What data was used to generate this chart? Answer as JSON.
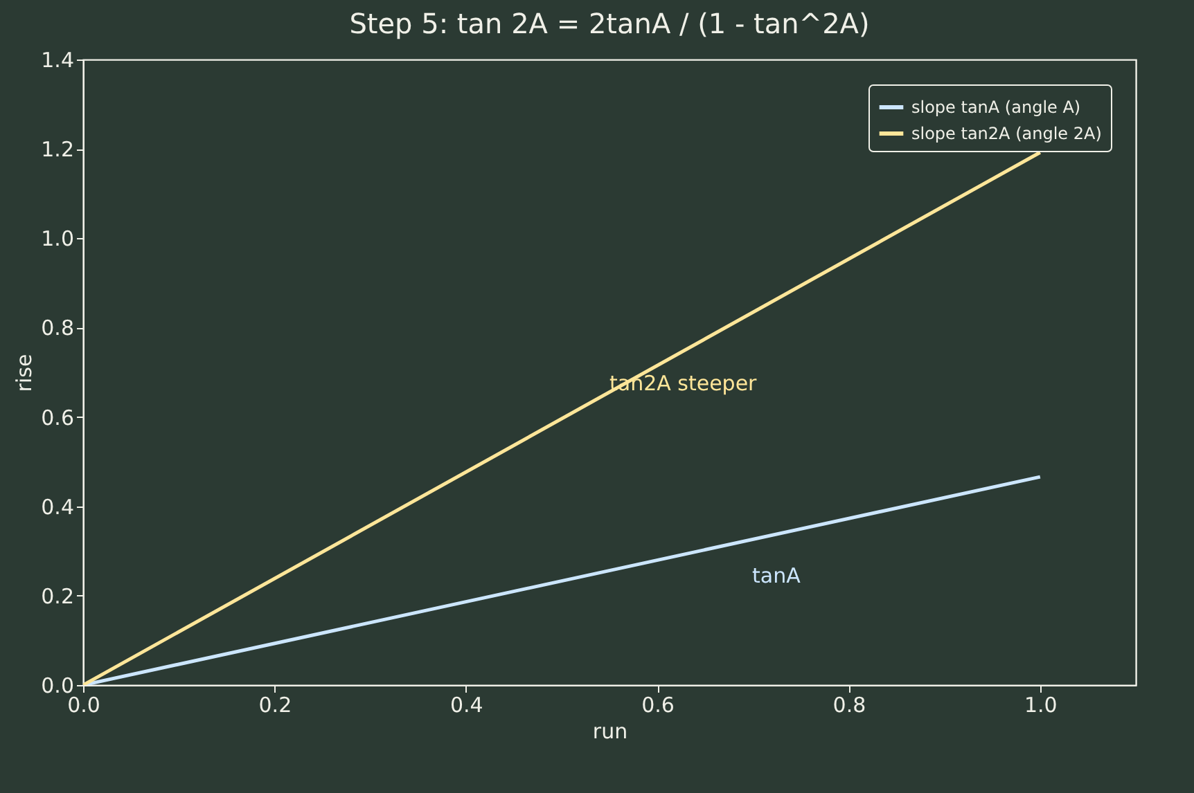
{
  "chart_data": {
    "type": "line",
    "title": "Step 5: tan 2A = 2tanA / (1 - tan^2A)",
    "xlabel": "run",
    "ylabel": "rise",
    "series": [
      {
        "name": "slope tanA (angle A)",
        "color": "#cce6ff",
        "values": [
          0,
          0.466
        ]
      },
      {
        "name": "slope tan2A (angle 2A)",
        "color": "#ffe699",
        "values": [
          0,
          1.192
        ]
      }
    ],
    "x": [
      0,
      1
    ],
    "annotations": [
      "tanA",
      "tan2A steeper"
    ],
    "xlim": [
      0,
      1.1
    ],
    "xticks": [
      {
        "value": 0,
        "label": "0.0"
      },
      0.2,
      0.4,
      0.6,
      0.8,
      {
        "value": 1,
        "label": "1.0"
      }
    ],
    "ylim": [
      0,
      1.4
    ],
    "yticks": [
      {
        "value": 0,
        "label": "0.0"
      },
      0.2,
      0.4,
      0.6,
      0.8,
      {
        "value": 1,
        "label": "1.0"
      },
      1.2,
      1.4
    ],
    "legend": "top right",
    "grid": false,
    "line_style": "solid",
    "marker": "none"
  }
}
